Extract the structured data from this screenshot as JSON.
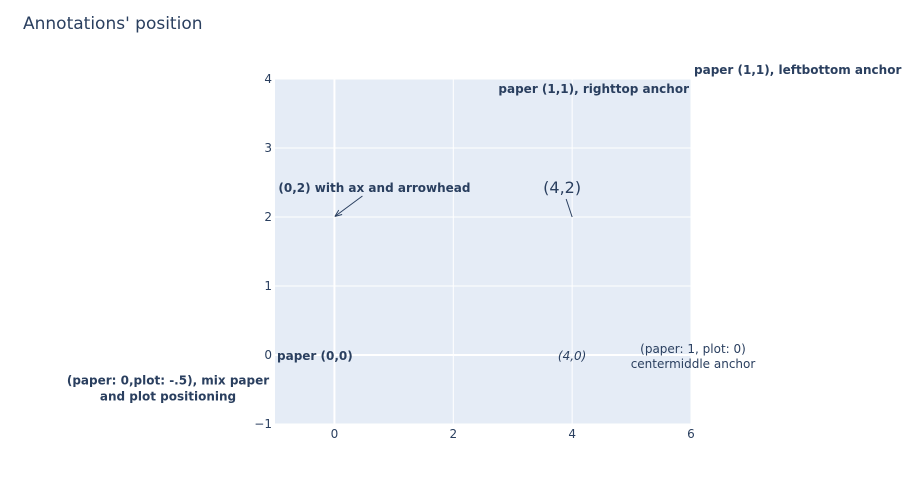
{
  "chart_data": {
    "type": "scatter",
    "title": "Annotations' position",
    "xlabel": "",
    "ylabel": "",
    "xlim": [
      -1,
      6
    ],
    "ylim": [
      -1,
      4
    ],
    "x_ticks": [
      0,
      2,
      4,
      6
    ],
    "y_ticks": [
      -1,
      0,
      1,
      2,
      3,
      4
    ],
    "x_tick_labels": [
      "0",
      "2",
      "4",
      "6"
    ],
    "y_tick_labels": [
      "−1",
      "0",
      "1",
      "2",
      "3",
      "4"
    ],
    "grid": true,
    "background": "#e5ecf6",
    "text_color": "#2a3f5f",
    "series": [],
    "annotations": [
      {
        "text": "(0,2) with ax and arrowhead",
        "x": 0,
        "y": 2,
        "xref": "x",
        "yref": "y",
        "arrow": true,
        "arrowhead": true,
        "bold": true
      },
      {
        "text": "(4,2)",
        "x": 4,
        "y": 2,
        "xref": "x",
        "yref": "y",
        "arrow": true,
        "arrowhead": false,
        "size": "large"
      },
      {
        "text": "(4,0)",
        "x": 4,
        "y": 0,
        "xref": "x",
        "yref": "y",
        "arrow": false,
        "italic": true
      },
      {
        "text": "paper (0,0)",
        "x": 0,
        "y": 0,
        "xref": "paper",
        "yref": "paper",
        "anchor": "left-bottom",
        "bold": true
      },
      {
        "text": "paper (1,1), righttop anchor",
        "x": 1,
        "y": 1,
        "xref": "paper",
        "yref": "paper",
        "anchor": "right-top",
        "bold": true
      },
      {
        "text": "paper (1,1), leftbottom anchor",
        "x": 1,
        "y": 1,
        "xref": "paper",
        "yref": "paper",
        "anchor": "left-bottom",
        "bold": true
      },
      {
        "text_lines": [
          "(paper: 1, plot: 0)",
          "centermiddle anchor"
        ],
        "x": 1,
        "y": 0,
        "xref": "paper",
        "yref": "y",
        "anchor": "center-middle"
      },
      {
        "text_lines": [
          "(paper: 0,plot: -.5), mix paper",
          "and plot positioning"
        ],
        "x": 0,
        "y": -0.5,
        "xref": "paper",
        "yref": "y",
        "anchor": "right-middle",
        "bold": true
      }
    ]
  }
}
